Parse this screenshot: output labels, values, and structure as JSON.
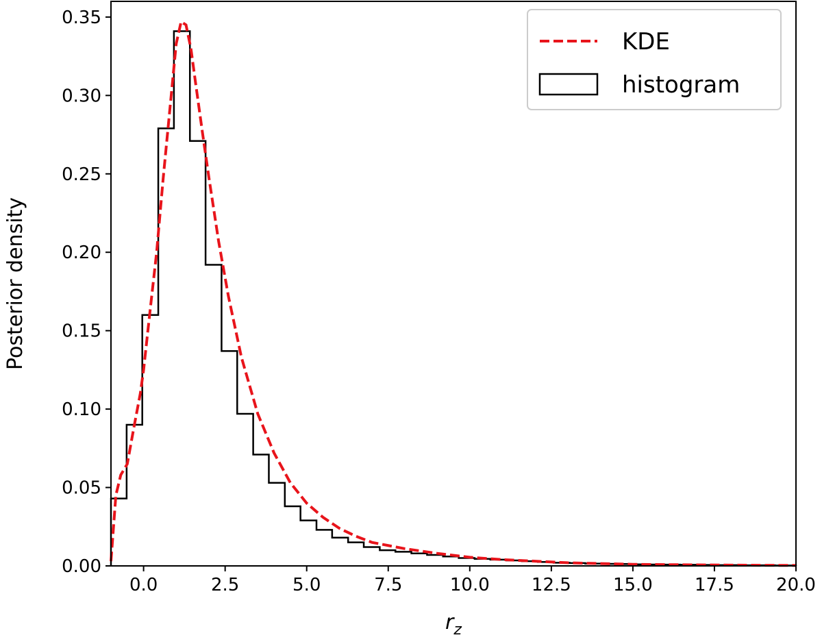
{
  "chart_data": {
    "type": "line",
    "xlabel": "r",
    "xlabel_subscript": "z",
    "ylabel": "Posterior density",
    "xlim": [
      -1.0,
      20.0
    ],
    "ylim": [
      0.0,
      0.36
    ],
    "xticks": [
      0.0,
      2.5,
      5.0,
      7.5,
      10.0,
      12.5,
      15.0,
      17.5,
      20.0
    ],
    "xtick_labels": [
      "0.0",
      "2.5",
      "5.0",
      "7.5",
      "10.0",
      "12.5",
      "15.0",
      "17.5",
      "20.0"
    ],
    "yticks": [
      0.0,
      0.05,
      0.1,
      0.15,
      0.2,
      0.25,
      0.3,
      0.35
    ],
    "ytick_labels": [
      "0.00",
      "0.05",
      "0.10",
      "0.15",
      "0.20",
      "0.25",
      "0.30",
      "0.35"
    ],
    "grid": false,
    "legend_position": "top-right",
    "series": [
      {
        "name": "KDE",
        "type": "line",
        "style": "dashed",
        "color": "#e8141b",
        "x": [
          -1.0,
          -0.85,
          -0.7,
          -0.5,
          -0.3,
          -0.1,
          0.0,
          0.2,
          0.4,
          0.6,
          0.8,
          1.0,
          1.15,
          1.3,
          1.45,
          1.6,
          1.8,
          2.0,
          2.3,
          2.6,
          3.0,
          3.5,
          4.0,
          4.5,
          5.0,
          5.5,
          6.0,
          6.5,
          7.0,
          7.5,
          8.0,
          9.0,
          10.0,
          11.0,
          12.0,
          13.0,
          14.0,
          15.0,
          16.0,
          18.0,
          20.0
        ],
        "y": [
          0.003,
          0.045,
          0.058,
          0.065,
          0.088,
          0.11,
          0.125,
          0.163,
          0.2,
          0.247,
          0.29,
          0.333,
          0.347,
          0.345,
          0.33,
          0.307,
          0.277,
          0.248,
          0.207,
          0.172,
          0.133,
          0.097,
          0.072,
          0.053,
          0.04,
          0.031,
          0.024,
          0.019,
          0.015,
          0.013,
          0.011,
          0.008,
          0.0055,
          0.004,
          0.003,
          0.002,
          0.0015,
          0.001,
          0.0008,
          0.0005,
          0.0003
        ]
      },
      {
        "name": "histogram",
        "type": "step",
        "color": "#000000",
        "bin_edges": [
          -1.0,
          -0.52,
          -0.04,
          0.45,
          0.93,
          1.42,
          1.9,
          2.39,
          2.87,
          3.36,
          3.84,
          4.33,
          4.81,
          5.3,
          5.78,
          6.27,
          6.75,
          7.24,
          7.72,
          8.21,
          8.69,
          9.18,
          9.66,
          10.15,
          10.63,
          11.12,
          11.6,
          12.09,
          12.57,
          13.06,
          13.54,
          14.03,
          14.51,
          15.0,
          15.48,
          15.97,
          16.45,
          16.94,
          17.42,
          17.91,
          18.39,
          18.88,
          19.36,
          20.0
        ],
        "values": [
          0.043,
          0.09,
          0.16,
          0.279,
          0.341,
          0.271,
          0.192,
          0.137,
          0.097,
          0.071,
          0.053,
          0.038,
          0.029,
          0.023,
          0.018,
          0.015,
          0.012,
          0.01,
          0.009,
          0.008,
          0.007,
          0.006,
          0.005,
          0.0045,
          0.004,
          0.0035,
          0.003,
          0.0025,
          0.002,
          0.0018,
          0.0015,
          0.0013,
          0.0012,
          0.001,
          0.0009,
          0.0008,
          0.0007,
          0.0006,
          0.0005,
          0.0005,
          0.0004,
          0.0004,
          0.0003
        ]
      }
    ]
  }
}
